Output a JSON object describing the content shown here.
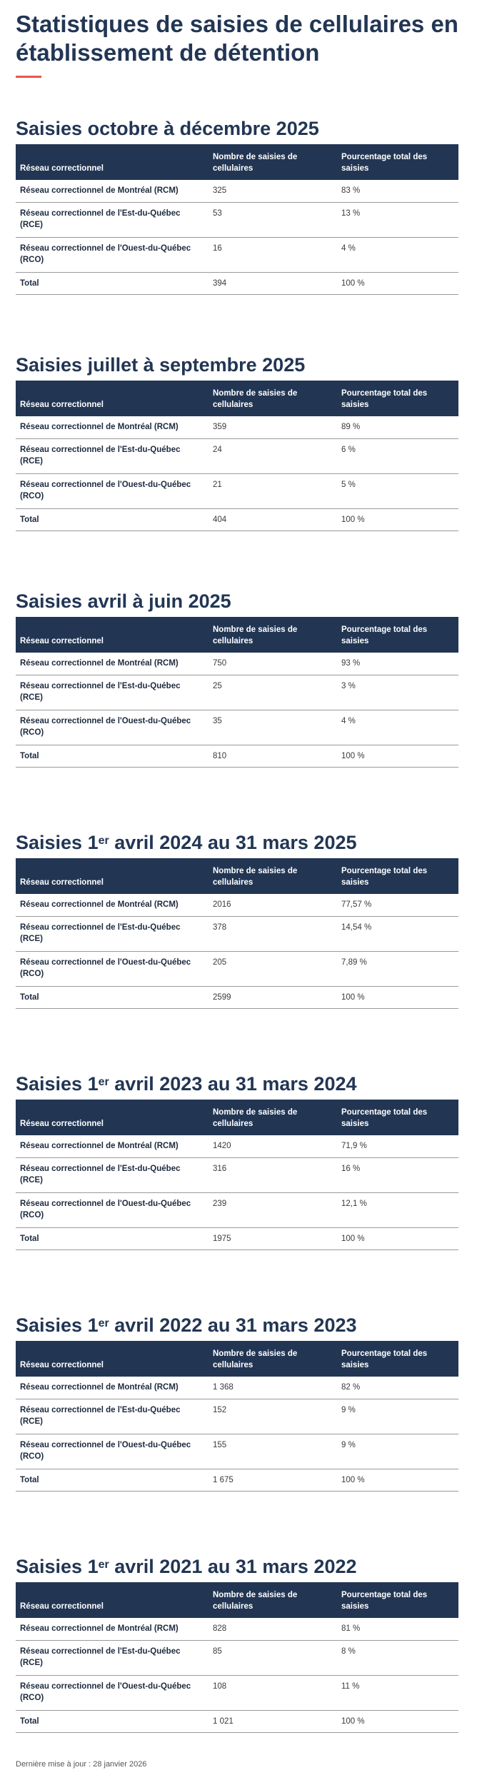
{
  "page": {
    "title": "Statistiques de saisies de cellulaires en établissement de détention",
    "footer": "Dernière mise à jour : 28 janvier 2026"
  },
  "headers": {
    "reseau": "Réseau correctionnel",
    "nombre": "Nombre de saisies de cellulaires",
    "pourcentage": "Pourcentage total des saisies"
  },
  "sections": [
    {
      "title_pre": "Saisies octobre à décembre 2025",
      "sup": "",
      "title_post": "",
      "rows": [
        {
          "reseau": "Réseau correctionnel de Montréal (RCM)",
          "nombre": "325",
          "pct": "83 %"
        },
        {
          "reseau": "Réseau correctionnel de l'Est-du-Québec (RCE)",
          "nombre": "53",
          "pct": "13 %"
        },
        {
          "reseau": "Réseau correctionnel de l'Ouest-du-Québec (RCO)",
          "nombre": "16",
          "pct": "4 %"
        },
        {
          "reseau": "Total",
          "nombre": "394",
          "pct": "100 %"
        }
      ]
    },
    {
      "title_pre": "Saisies juillet à septembre 2025",
      "sup": "",
      "title_post": "",
      "rows": [
        {
          "reseau": "Réseau correctionnel de Montréal (RCM)",
          "nombre": "359",
          "pct": "89 %"
        },
        {
          "reseau": "Réseau correctionnel de l'Est-du-Québec (RCE)",
          "nombre": "24",
          "pct": "6 %"
        },
        {
          "reseau": "Réseau correctionnel de l'Ouest-du-Québec (RCO)",
          "nombre": "21",
          "pct": "5 %"
        },
        {
          "reseau": "Total",
          "nombre": "404",
          "pct": "100 %"
        }
      ]
    },
    {
      "title_pre": "Saisies avril à juin 2025",
      "sup": "",
      "title_post": "",
      "rows": [
        {
          "reseau": "Réseau correctionnel de Montréal (RCM)",
          "nombre": "750",
          "pct": "93 %"
        },
        {
          "reseau": "Réseau correctionnel de l'Est-du-Québec (RCE)",
          "nombre": "25",
          "pct": "3 %"
        },
        {
          "reseau": "Réseau correctionnel de l'Ouest-du-Québec (RCO)",
          "nombre": "35",
          "pct": "4 %"
        },
        {
          "reseau": "Total",
          "nombre": "810",
          "pct": "100 %"
        }
      ]
    },
    {
      "title_pre": "Saisies 1",
      "sup": "er",
      "title_post": " avril 2024 au 31 mars 2025",
      "rows": [
        {
          "reseau": "Réseau correctionnel de Montréal (RCM)",
          "nombre": "2016",
          "pct": "77,57 %"
        },
        {
          "reseau": "Réseau correctionnel de l'Est-du-Québec (RCE)",
          "nombre": "378",
          "pct": "14,54 %"
        },
        {
          "reseau": "Réseau correctionnel de l'Ouest-du-Québec (RCO)",
          "nombre": "205",
          "pct": "7,89 %"
        },
        {
          "reseau": "Total",
          "nombre": "2599",
          "pct": "100 %"
        }
      ]
    },
    {
      "title_pre": "Saisies 1",
      "sup": "er",
      "title_post": " avril 2023 au 31 mars 2024",
      "rows": [
        {
          "reseau": "Réseau correctionnel de Montréal (RCM)",
          "nombre": "1420",
          "pct": "71,9 %"
        },
        {
          "reseau": "Réseau correctionnel de l'Est-du-Québec (RCE)",
          "nombre": "316",
          "pct": "16 %"
        },
        {
          "reseau": "Réseau correctionnel de l'Ouest-du-Québec (RCO)",
          "nombre": "239",
          "pct": "12,1 %"
        },
        {
          "reseau": "Total",
          "nombre": "1975",
          "pct": "100 %"
        }
      ]
    },
    {
      "title_pre": "Saisies 1",
      "sup": "er",
      "title_post": " avril 2022 au 31 mars 2023",
      "rows": [
        {
          "reseau": "Réseau correctionnel de Montréal (RCM)",
          "nombre": "1 368",
          "pct": "82 %"
        },
        {
          "reseau": "Réseau correctionnel de l'Est-du-Québec (RCE)",
          "nombre": "152",
          "pct": "9 %"
        },
        {
          "reseau": "Réseau correctionnel de l'Ouest-du-Québec (RCO)",
          "nombre": "155",
          "pct": "9 %"
        },
        {
          "reseau": "Total",
          "nombre": "1 675",
          "pct": "100 %"
        }
      ]
    },
    {
      "title_pre": "Saisies 1",
      "sup": "er",
      "title_post": " avril 2021 au 31 mars 2022",
      "rows": [
        {
          "reseau": "Réseau correctionnel de Montréal (RCM)",
          "nombre": "828",
          "pct": "81 %"
        },
        {
          "reseau": "Réseau correctionnel de l'Est-du-Québec (RCE)",
          "nombre": "85",
          "pct": "8 %"
        },
        {
          "reseau": "Réseau correctionnel de l'Ouest-du-Québec (RCO)",
          "nombre": "108",
          "pct": "11 %"
        },
        {
          "reseau": "Total",
          "nombre": "1 021",
          "pct": "100 %"
        }
      ]
    }
  ]
}
